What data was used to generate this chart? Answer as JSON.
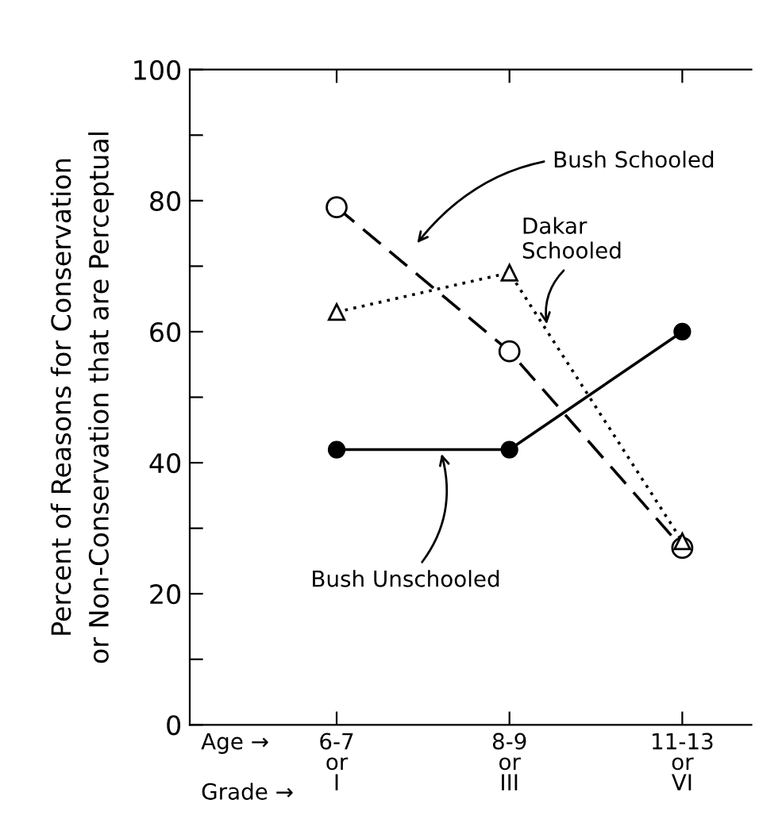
{
  "chart_data": {
    "type": "line",
    "ylabel": "Percent of Reasons for Conservation\nor Non-Conservation that are Perceptual",
    "categories": [
      "6-7\nor\nI",
      "8-9\nor\nIII",
      "11-13\nor\nVI"
    ],
    "ylim": [
      0,
      100
    ],
    "yticks": [
      0,
      {
        "value": 10,
        "label": null
      },
      20,
      {
        "value": 30,
        "label": null
      },
      40,
      {
        "value": 50,
        "label": null
      },
      60,
      {
        "value": 70,
        "label": null
      },
      80,
      {
        "value": 90,
        "label": null
      },
      100
    ],
    "series": [
      {
        "name": "Bush Schooled",
        "color": "#000000",
        "values": [
          79,
          57,
          27
        ],
        "marker": "circle",
        "line_style": "dashed"
      },
      {
        "name": "Dakar\nSchooled",
        "color": "#000000",
        "values": [
          63,
          69,
          28
        ],
        "marker": "triangle",
        "line_style": "dotted"
      },
      {
        "name": "Bush Unschooled",
        "color": "#000000",
        "values": [
          42,
          42,
          60
        ],
        "marker": "circle",
        "line_style": "solid"
      }
    ],
    "annotations": [
      "Age →",
      "Grade →"
    ],
    "grid": false,
    "legend": false
  }
}
